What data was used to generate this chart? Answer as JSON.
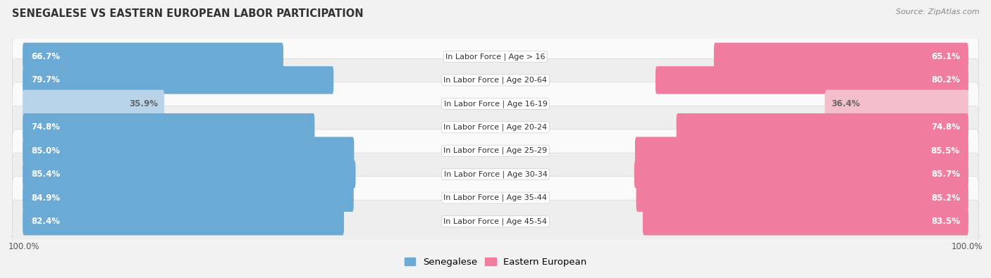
{
  "title": "SENEGALESE VS EASTERN EUROPEAN LABOR PARTICIPATION",
  "source": "Source: ZipAtlas.com",
  "categories": [
    "In Labor Force | Age > 16",
    "In Labor Force | Age 20-64",
    "In Labor Force | Age 16-19",
    "In Labor Force | Age 20-24",
    "In Labor Force | Age 25-29",
    "In Labor Force | Age 30-34",
    "In Labor Force | Age 35-44",
    "In Labor Force | Age 45-54"
  ],
  "senegalese": [
    66.7,
    79.7,
    35.9,
    74.8,
    85.0,
    85.4,
    84.9,
    82.4
  ],
  "eastern_european": [
    65.1,
    80.2,
    36.4,
    74.8,
    85.5,
    85.7,
    85.2,
    83.5
  ],
  "senegalese_labels": [
    "66.7%",
    "79.7%",
    "35.9%",
    "74.8%",
    "85.0%",
    "85.4%",
    "84.9%",
    "82.4%"
  ],
  "eastern_european_labels": [
    "65.1%",
    "80.2%",
    "36.4%",
    "74.8%",
    "85.5%",
    "85.7%",
    "85.2%",
    "83.5%"
  ],
  "blue_dark": "#6aaad4",
  "blue_light": "#b8d4ea",
  "pink_dark": "#f07ca0",
  "pink_light": "#f5bece",
  "bar_height": 0.58,
  "max_val": 100.0,
  "bg_color": "#f2f2f2",
  "row_bg_even": "#fafafa",
  "row_bg_odd": "#eeeeee",
  "label_fontsize": 8.5,
  "cat_fontsize": 8.0,
  "title_fontsize": 10.5,
  "legend_fontsize": 9.5,
  "threshold": 50.0
}
